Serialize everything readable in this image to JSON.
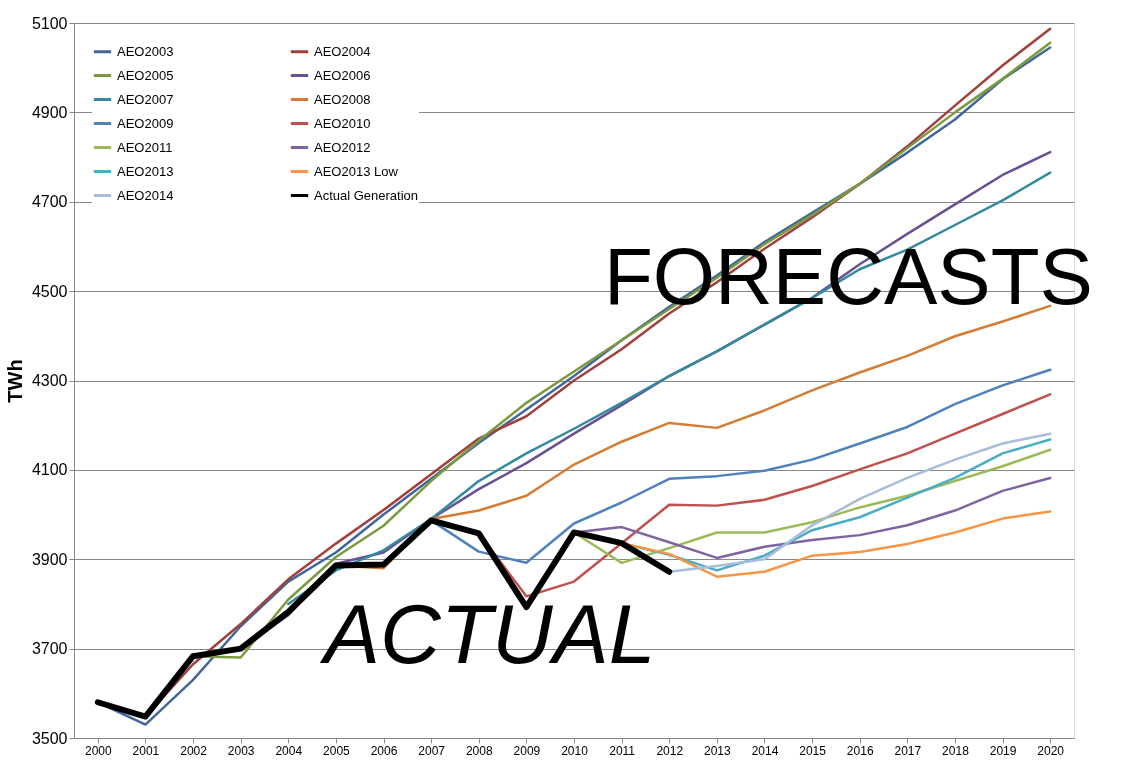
{
  "chart_data": {
    "type": "line",
    "ylabel": "TWh",
    "categories": [
      "2000",
      "2001",
      "2002",
      "2003",
      "2004",
      "2005",
      "2006",
      "2007",
      "2008",
      "2009",
      "2010",
      "2011",
      "2012",
      "2013",
      "2014",
      "2015",
      "2016",
      "2017",
      "2018",
      "2019",
      "2020"
    ],
    "ylim": [
      3500,
      5100
    ],
    "yticks": [
      3500,
      3700,
      3900,
      4100,
      4300,
      4500,
      4700,
      4900,
      5100
    ],
    "grid": "y",
    "legend": "top left",
    "marker": "none",
    "line_style": "solid",
    "annotations": [
      "FORECASTS",
      "ACTUAL"
    ],
    "series": [
      {
        "name": "AEO2003",
        "color": "#41679a",
        "values": [
          3580,
          3530,
          3630,
          3750,
          3850,
          3915,
          4000,
          4080,
          4160,
          4235,
          4310,
          4390,
          4465,
          4535,
          4610,
          4675,
          4740,
          4810,
          4884,
          4974,
          5045
        ]
      },
      {
        "name": "AEO2004",
        "color": "#a13f3c",
        "values": [
          null,
          3548,
          3665,
          3755,
          3855,
          3935,
          4010,
          4090,
          4170,
          4220,
          4300,
          4370,
          4450,
          4520,
          4595,
          4665,
          4740,
          4824,
          4915,
          5005,
          5087
        ]
      },
      {
        "name": "AEO2005",
        "color": "#7b9a3f",
        "values": [
          null,
          null,
          3683,
          3680,
          3810,
          3905,
          3975,
          4075,
          4165,
          4250,
          4320,
          4390,
          4460,
          4530,
          4605,
          4670,
          4740,
          4820,
          4900,
          4975,
          5056
        ]
      },
      {
        "name": "AEO2006",
        "color": "#6a5191",
        "values": [
          null,
          null,
          null,
          3700,
          3775,
          3890,
          3915,
          3990,
          4057,
          4115,
          4181,
          4245,
          4310,
          4365,
          4425,
          4485,
          4560,
          4628,
          4694,
          4760,
          4811
        ]
      },
      {
        "name": "AEO2007",
        "color": "#34899f",
        "values": [
          null,
          null,
          null,
          null,
          3800,
          3875,
          3920,
          3990,
          4075,
          4137,
          4192,
          4250,
          4310,
          4365,
          4425,
          4485,
          4549,
          4593,
          4648,
          4703,
          4765
        ]
      },
      {
        "name": "AEO2008",
        "color": "#d47c33",
        "values": [
          null,
          null,
          null,
          null,
          null,
          3886,
          3880,
          3990,
          4009,
          4042,
          4112,
          4163,
          4205,
          4194,
          4233,
          4278,
          4318,
          4355,
          4399,
          4432,
          4467
        ]
      },
      {
        "name": "AEO2009",
        "color": "#4f81bd",
        "values": [
          null,
          null,
          null,
          null,
          null,
          null,
          null,
          3987,
          3917,
          3892,
          3980,
          4027,
          4080,
          4086,
          4098,
          4123,
          4159,
          4196,
          4247,
          4289,
          4324
        ]
      },
      {
        "name": "AEO2010",
        "color": "#c0504d",
        "values": [
          null,
          null,
          null,
          null,
          null,
          null,
          null,
          null,
          3958,
          3817,
          3850,
          3936,
          4022,
          4020,
          4033,
          4064,
          4101,
          4137,
          4181,
          4225,
          4269
        ]
      },
      {
        "name": "AEO2011",
        "color": "#9bbb59",
        "values": [
          null,
          null,
          null,
          null,
          null,
          null,
          null,
          null,
          null,
          null,
          3960,
          3892,
          3925,
          3960,
          3960,
          3983,
          4016,
          4042,
          4075,
          4108,
          4145
        ]
      },
      {
        "name": "AEO2012",
        "color": "#8064a2",
        "values": [
          null,
          null,
          null,
          null,
          null,
          null,
          null,
          null,
          null,
          null,
          3960,
          3972,
          3938,
          3903,
          3928,
          3943,
          3954,
          3976,
          4009,
          4053,
          4082
        ]
      },
      {
        "name": "AEO2013",
        "color": "#4bacc6",
        "values": [
          null,
          null,
          null,
          null,
          null,
          null,
          null,
          null,
          null,
          null,
          null,
          3936,
          3910,
          3875,
          3908,
          3965,
          3994,
          4038,
          4082,
          4137,
          4168
        ]
      },
      {
        "name": "AEO2013 Low",
        "color": "#f79646",
        "values": [
          null,
          null,
          null,
          null,
          null,
          null,
          null,
          null,
          null,
          null,
          null,
          3936,
          3912,
          3861,
          3872,
          3908,
          3916,
          3934,
          3960,
          3991,
          4007
        ]
      },
      {
        "name": "AEO2014",
        "color": "#a9bcd9",
        "values": [
          null,
          null,
          null,
          null,
          null,
          null,
          null,
          null,
          null,
          null,
          null,
          null,
          3872,
          3885,
          3900,
          3976,
          4035,
          4082,
          4123,
          4159,
          4181
        ]
      },
      {
        "name": "Actual Generation",
        "color": "#000000",
        "values": [
          3580,
          3548,
          3683,
          3700,
          3782,
          3886,
          3888,
          3987,
          3958,
          3793,
          3960,
          3936,
          3872,
          null,
          null,
          null,
          null,
          null,
          null,
          null,
          null
        ]
      }
    ]
  }
}
